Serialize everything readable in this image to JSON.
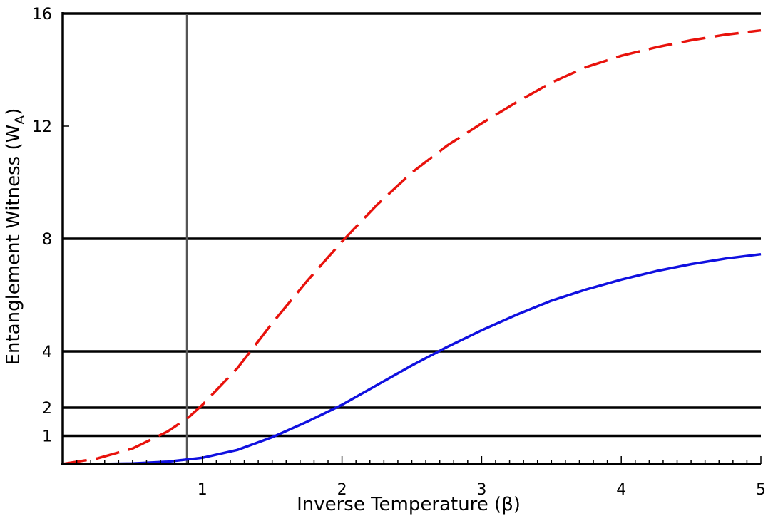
{
  "chart_data": {
    "type": "line",
    "xlabel": "Inverse Temperature (β)",
    "ylabel_main": "Entanglement Witness (W",
    "ylabel_sub": "A",
    "ylabel_close": ")",
    "xlim": [
      0,
      5
    ],
    "ylim": [
      0,
      16
    ],
    "x_ticks": [
      1,
      2,
      3,
      4,
      5
    ],
    "x_tick_labels": [
      "1",
      "2",
      "3",
      "4",
      "5"
    ],
    "y_ticks": [
      1,
      2,
      4,
      8,
      12,
      16
    ],
    "y_tick_labels": [
      "1",
      "2",
      "4",
      "8",
      "12",
      "16"
    ],
    "hlines": [
      1,
      2,
      4,
      8,
      16
    ],
    "vline": 0.89,
    "colors": {
      "series_red": "#e8120c",
      "series_blue": "#1010e0",
      "grid": "#000000",
      "vline": "#555555"
    },
    "series": [
      {
        "style": "dashed",
        "color": "#e8120c",
        "x": [
          0,
          0.25,
          0.5,
          0.75,
          0.9,
          1.0,
          1.25,
          1.5,
          1.75,
          2.0,
          2.25,
          2.5,
          2.75,
          3.0,
          3.25,
          3.5,
          3.75,
          4.0,
          4.25,
          4.5,
          4.75,
          5.0
        ],
        "y": [
          0,
          0.2,
          0.55,
          1.15,
          1.65,
          2.1,
          3.4,
          5.0,
          6.5,
          7.9,
          9.2,
          10.35,
          11.3,
          12.1,
          12.85,
          13.55,
          14.1,
          14.5,
          14.8,
          15.05,
          15.25,
          15.4
        ]
      },
      {
        "style": "solid",
        "color": "#1010e0",
        "x": [
          0,
          0.25,
          0.5,
          0.75,
          1.0,
          1.25,
          1.5,
          1.75,
          2.0,
          2.25,
          2.5,
          2.75,
          3.0,
          3.25,
          3.5,
          3.75,
          4.0,
          4.25,
          4.5,
          4.75,
          5.0
        ],
        "y": [
          0,
          0.0,
          0.02,
          0.08,
          0.22,
          0.5,
          0.95,
          1.5,
          2.1,
          2.8,
          3.5,
          4.15,
          4.75,
          5.3,
          5.8,
          6.2,
          6.55,
          6.85,
          7.1,
          7.3,
          7.45
        ]
      }
    ]
  }
}
